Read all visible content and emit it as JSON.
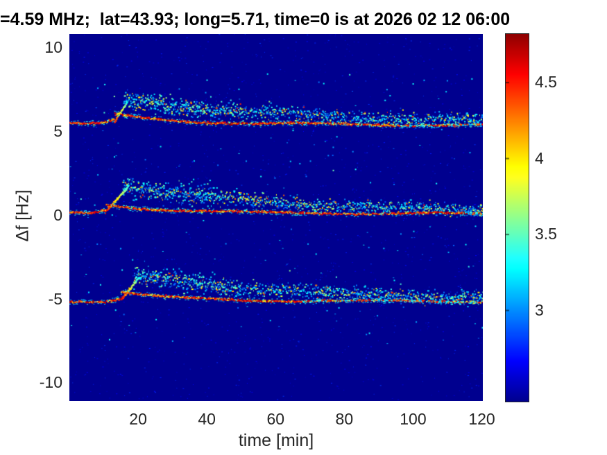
{
  "title": "=4.59 MHz;  lat=43.93; long=5.71, time=0 is at 2026 02 12 06:00",
  "text_color": "#262626",
  "chart_data": {
    "type": "heatmap",
    "description": "Doppler shift spectrogram: three speckled horizontal traces on a dark blue background; each trace shows a disturbance beginning ~10-15 min after 06:00 that rises ~1.3-1.6 Hz above its baseline then slowly decays back over ~2 hours, leaving a diffuse blue/cyan scatter cloud above a red/orange main line.",
    "xlabel": "time [min]",
    "ylabel": "Δf [Hz]",
    "xlim": [
      0,
      120.3
    ],
    "ylim": [
      -11.1,
      10.8
    ],
    "xticks": [
      20,
      40,
      60,
      80,
      100,
      120
    ],
    "yticks": [
      10,
      5,
      0,
      -5,
      -10
    ],
    "grid": false,
    "legend": null,
    "colormap": "jet",
    "background_value_color": "#00008F",
    "colorbar": {
      "min": 2.4,
      "max": 4.82,
      "ticks": [
        3,
        3.5,
        4,
        4.5
      ],
      "position": "right"
    },
    "bands": [
      {
        "name": "upper-trace",
        "baseline_hz": 5.45,
        "baseline_drift_hz": -0.12,
        "onset_min": 13.1,
        "rise_min": 3.8,
        "peak_offset_hz": 1.32,
        "decay_tau_min": 50,
        "line_bump_hz": 0.5,
        "line_bump_tau_min": 15,
        "warm_fade_min": 95,
        "warm_boost": false
      },
      {
        "name": "center-trace",
        "baseline_hz": 0.1,
        "baseline_drift_hz": -0.05,
        "onset_min": 10.5,
        "rise_min": 6.8,
        "peak_offset_hz": 1.62,
        "decay_tau_min": 42,
        "line_bump_hz": 0.45,
        "line_bump_tau_min": 17,
        "warm_fade_min": 115,
        "warm_boost": true
      },
      {
        "name": "lower-trace",
        "baseline_hz": -5.15,
        "baseline_drift_hz": -0.03,
        "onset_min": 15.1,
        "rise_min": 5.2,
        "peak_offset_hz": 1.42,
        "decay_tau_min": 45,
        "line_bump_hz": 0.5,
        "line_bump_tau_min": 14,
        "warm_fade_min": 68,
        "warm_boost": false
      }
    ]
  },
  "layout_note": "time=0 min corresponds to 2026-02-12 06:00"
}
